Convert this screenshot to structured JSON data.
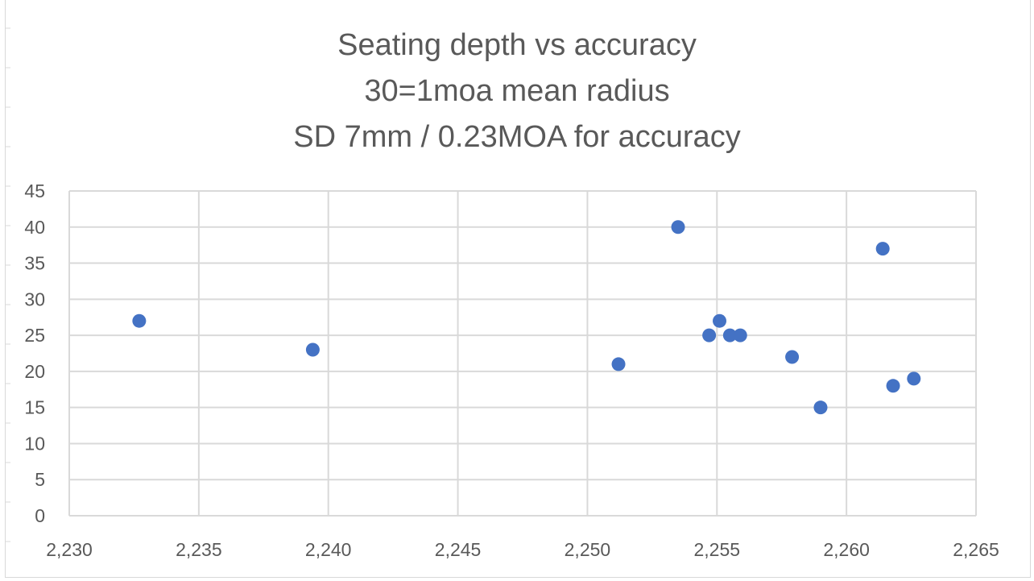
{
  "chart_data": {
    "type": "scatter",
    "title_lines": [
      "Seating depth vs accuracy",
      "30=1moa mean radius",
      "SD 7mm / 0.23MOA for accuracy"
    ],
    "xlabel": "",
    "ylabel": "",
    "xlim": [
      2.23,
      2.265
    ],
    "ylim": [
      0,
      45
    ],
    "x_ticks": [
      2.23,
      2.235,
      2.24,
      2.245,
      2.25,
      2.255,
      2.26,
      2.265
    ],
    "x_tick_labels": [
      "2,230",
      "2,235",
      "2,240",
      "2,245",
      "2,250",
      "2,255",
      "2,260",
      "2,265"
    ],
    "y_ticks": [
      0,
      5,
      10,
      15,
      20,
      25,
      30,
      35,
      40,
      45
    ],
    "y_tick_labels": [
      "0",
      "5",
      "10",
      "15",
      "20",
      "25",
      "30",
      "35",
      "40",
      "45"
    ],
    "grid": true,
    "marker_color": "#4472c4",
    "gridline_color": "#d9d9d9",
    "points": [
      {
        "x": 2.2327,
        "y": 27
      },
      {
        "x": 2.2394,
        "y": 23
      },
      {
        "x": 2.2512,
        "y": 21
      },
      {
        "x": 2.2535,
        "y": 40
      },
      {
        "x": 2.2547,
        "y": 25
      },
      {
        "x": 2.2551,
        "y": 27
      },
      {
        "x": 2.2555,
        "y": 25
      },
      {
        "x": 2.2559,
        "y": 25
      },
      {
        "x": 2.2579,
        "y": 22
      },
      {
        "x": 2.259,
        "y": 15
      },
      {
        "x": 2.2614,
        "y": 37
      },
      {
        "x": 2.2618,
        "y": 18
      },
      {
        "x": 2.2626,
        "y": 19
      }
    ]
  }
}
